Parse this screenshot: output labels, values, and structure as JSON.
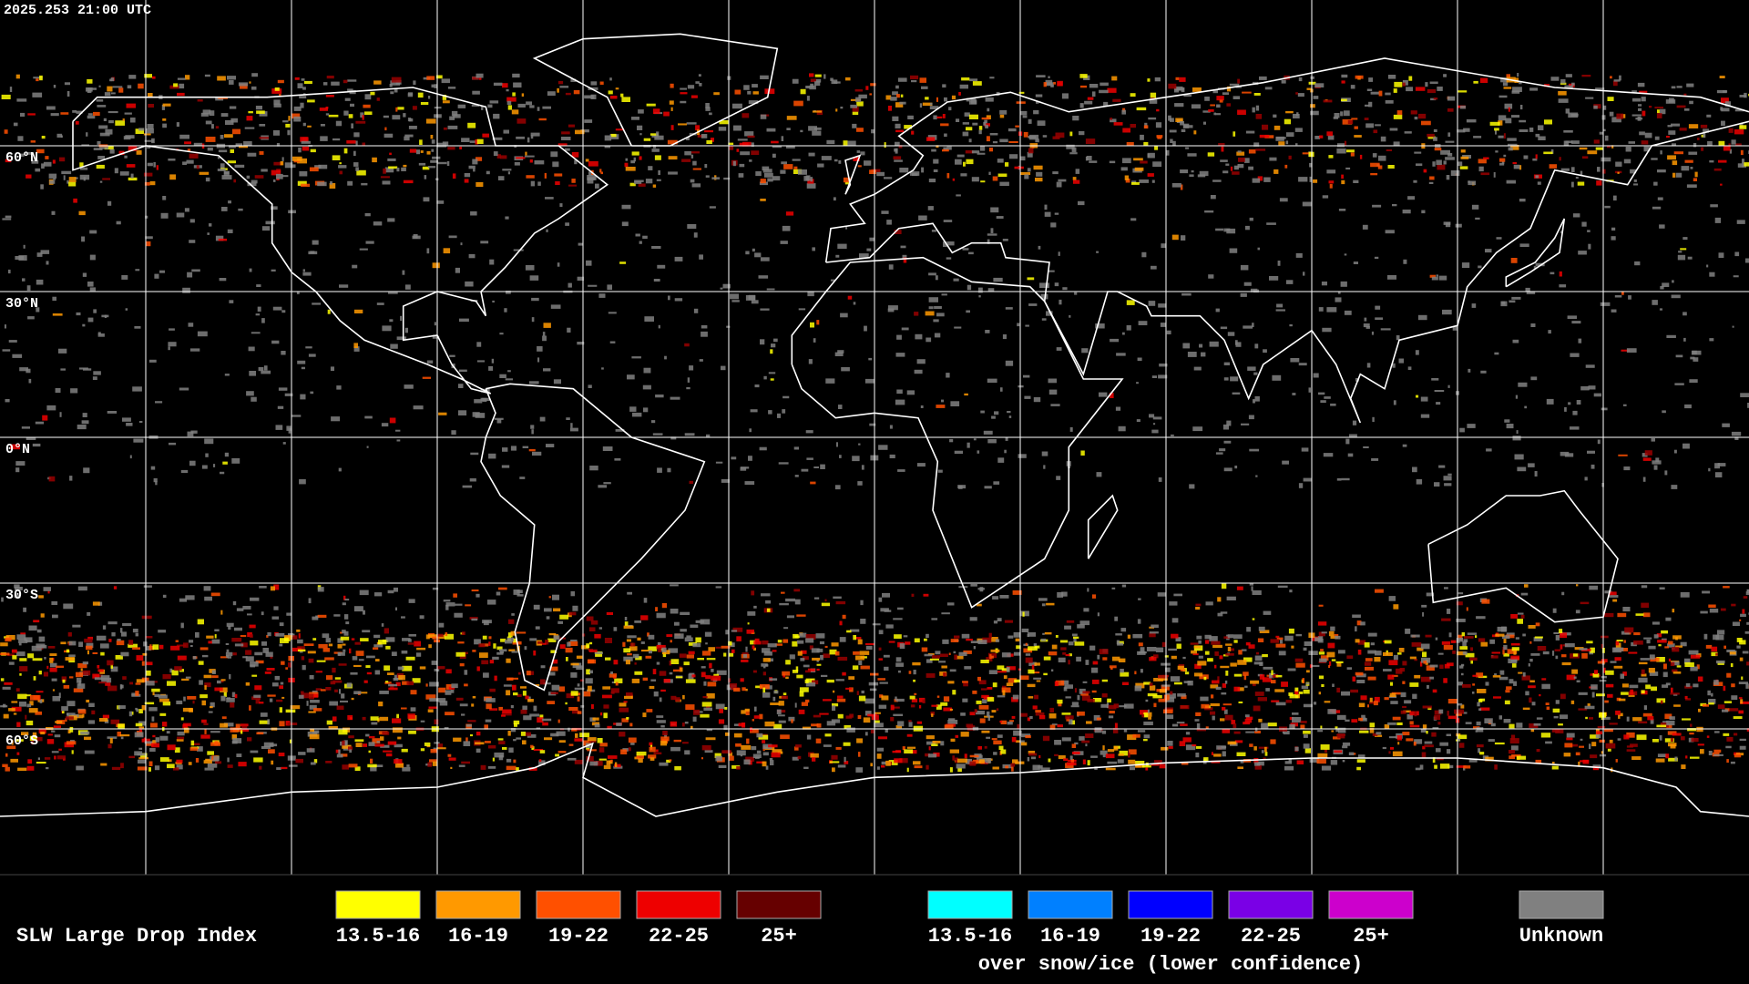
{
  "header": {
    "timestamp": "2025.253 21:00 UTC"
  },
  "map": {
    "lat_labels": [
      "60°N",
      "30°N",
      "0°N",
      "30°S",
      "60°S"
    ]
  },
  "legend": {
    "title": "SLW Large Drop Index",
    "groups": [
      {
        "items": [
          {
            "label": "13.5-16",
            "color": "#ffff00"
          },
          {
            "label": "16-19",
            "color": "#ff9900"
          },
          {
            "label": "19-22",
            "color": "#ff5000"
          },
          {
            "label": "22-25",
            "color": "#ee0000"
          },
          {
            "label": "25+",
            "color": "#660000"
          }
        ]
      },
      {
        "items": [
          {
            "label": "13.5-16",
            "color": "#00ffff"
          },
          {
            "label": "16-19",
            "color": "#0080ff"
          },
          {
            "label": "19-22",
            "color": "#0000ff"
          },
          {
            "label": "22-25",
            "color": "#7a00e6"
          },
          {
            "label": "25+",
            "color": "#cc00cc"
          }
        ],
        "caption": "over snow/ice (lower confidence)"
      },
      {
        "items": [
          {
            "label": "Unknown",
            "color": "#808080"
          }
        ]
      }
    ]
  }
}
